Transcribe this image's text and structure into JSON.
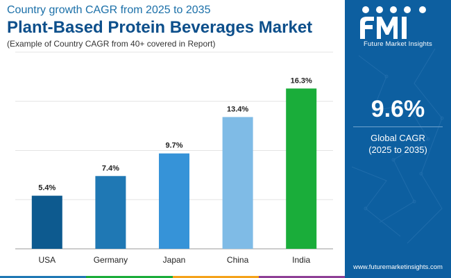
{
  "header": {
    "subtitle": "Country growth CAGR from 2025 to 2035",
    "title": "Plant-Based Protein Beverages Market",
    "note": "(Example of Country CAGR from 40+ covered in Report)"
  },
  "chart_data": {
    "type": "bar",
    "title": "Plant-Based Protein Beverages Market",
    "categories": [
      "USA",
      "Germany",
      "Japan",
      "China",
      "India"
    ],
    "values": [
      5.4,
      7.4,
      9.7,
      13.4,
      16.3
    ],
    "value_labels": [
      "5.4%",
      "7.4%",
      "9.7%",
      "13.4%",
      "16.3%"
    ],
    "bar_colors": [
      "#0d5a8f",
      "#1f78b4",
      "#3693d8",
      "#7fbbe6",
      "#1aad3a"
    ],
    "ylim": [
      0,
      20
    ],
    "gridlines": [
      5,
      10,
      15,
      20
    ],
    "xlabel": "",
    "ylabel": ""
  },
  "sidebar": {
    "logo_text": "Future Market Insights",
    "kpi_value": "9.6%",
    "kpi_label_line1": "Global CAGR",
    "kpi_label_line2": "(2025 to 2035)",
    "website": "www.futuremarketinsights.com",
    "background_color": "#0d5fa0"
  },
  "bottom_strip_colors": [
    "#1f78b4",
    "#1aad3a",
    "#f4a21a",
    "#8e3f96"
  ]
}
